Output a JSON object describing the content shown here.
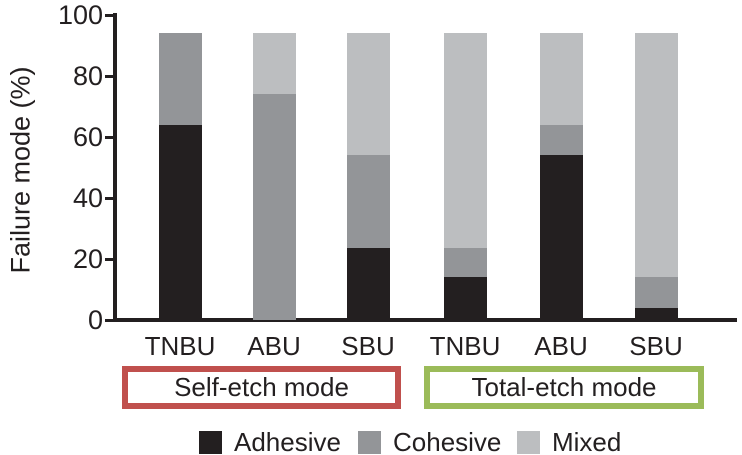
{
  "chart_data": {
    "type": "bar",
    "stacked": true,
    "title": "",
    "ylabel": "Failure mode (%)",
    "xlabel": "",
    "ylim": [
      0,
      100
    ],
    "yticks": [
      0,
      20,
      40,
      60,
      80,
      100
    ],
    "grid": false,
    "legend_position": "bottom",
    "axis_color": "#231f20",
    "categories": [
      "TNBU",
      "ABU",
      "SBU",
      "TNBU",
      "ABU",
      "SBU"
    ],
    "series": [
      {
        "name": "Adhesive",
        "color": "#231f20",
        "values": [
          64,
          0,
          23.5,
          14,
          54,
          4
        ]
      },
      {
        "name": "Cohesive",
        "color": "#939598",
        "values": [
          30,
          74,
          30.5,
          9.5,
          10,
          10
        ]
      },
      {
        "name": "Mixed",
        "color": "#bcbec0",
        "values": [
          0,
          20,
          40,
          70.5,
          30,
          80
        ]
      }
    ],
    "groups": [
      {
        "label": "Self-etch mode",
        "border_color": "#c0504d",
        "category_indexes": [
          0,
          1,
          2
        ]
      },
      {
        "label": "Total-etch mode",
        "border_color": "#9bbb59",
        "category_indexes": [
          3,
          4,
          5
        ]
      }
    ]
  }
}
